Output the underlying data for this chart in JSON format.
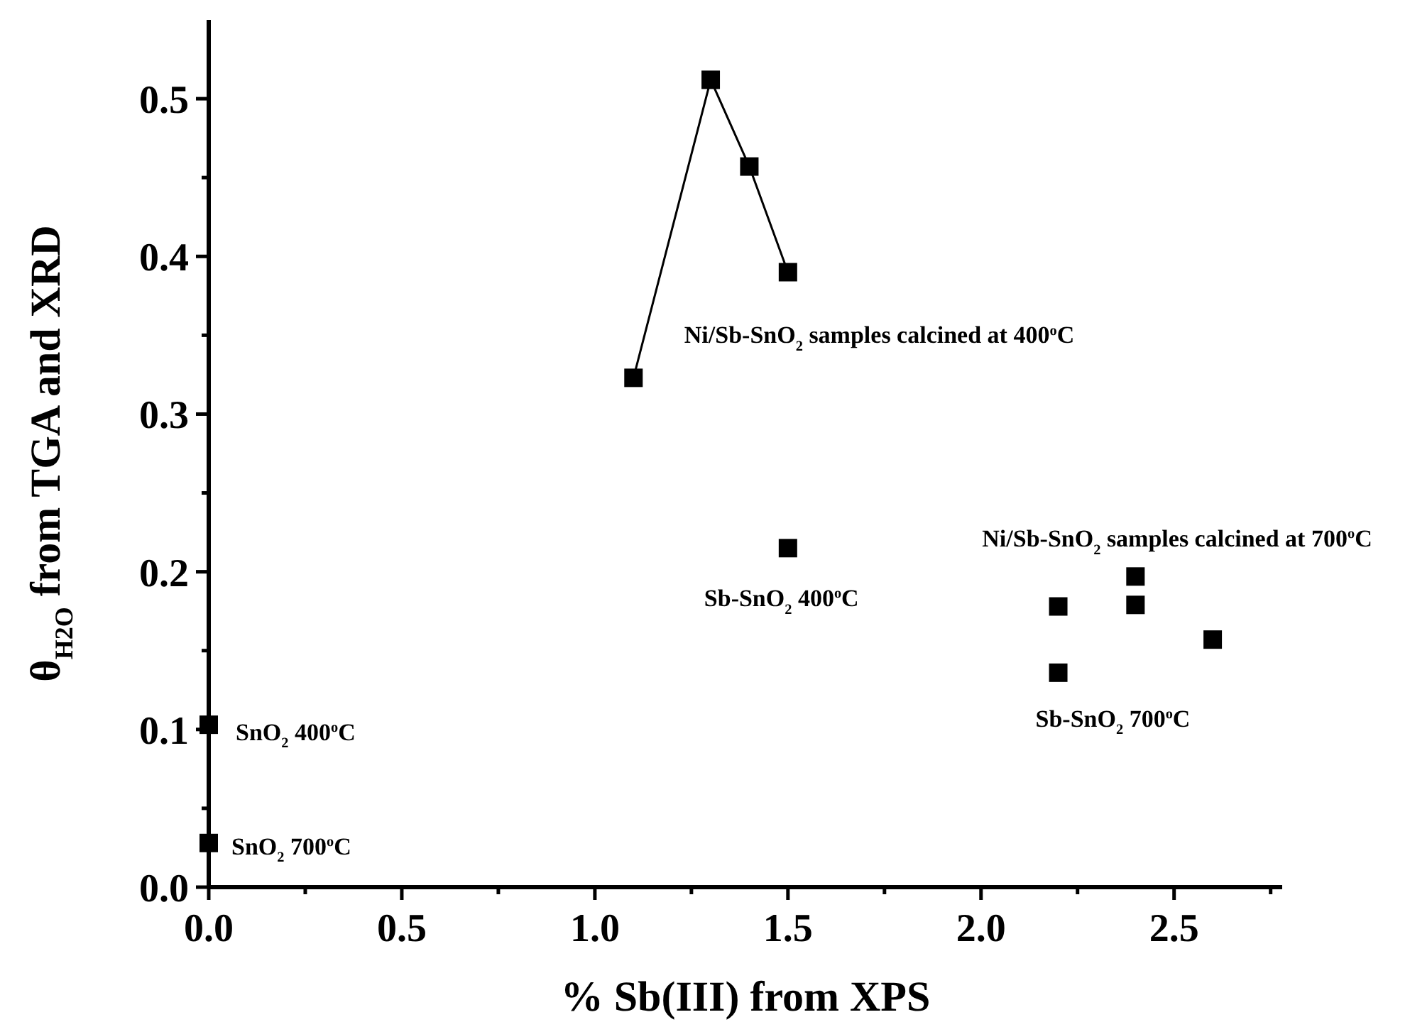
{
  "chart_data": {
    "type": "scatter",
    "xlabel": "% Sb(III) from XPS",
    "ylabel": "θ$_{H2O}$ from TGA and XRD",
    "xlim": [
      0,
      2.78
    ],
    "xticks": [
      {
        "value": 0,
        "label": "0.0"
      },
      {
        "value": 0.25,
        "label": null
      },
      0.5,
      {
        "value": 0.75,
        "label": null
      },
      {
        "value": 1,
        "label": "1.0"
      },
      {
        "value": 1.25,
        "label": null
      },
      1.5,
      {
        "value": 1.75,
        "label": null
      },
      {
        "value": 2,
        "label": "2.0"
      },
      {
        "value": 2.25,
        "label": null
      },
      2.5,
      {
        "value": 2.75,
        "label": null
      }
    ],
    "ylim": [
      0,
      0.55
    ],
    "yticks": [
      {
        "value": 0,
        "label": "0.0"
      },
      {
        "value": 0.05,
        "label": null
      },
      0.1,
      {
        "value": 0.15,
        "label": null
      },
      0.2,
      {
        "value": 0.25,
        "label": null
      },
      0.3,
      {
        "value": 0.35,
        "label": null
      },
      0.4,
      {
        "value": 0.45,
        "label": null
      },
      0.5
    ],
    "marker": "square",
    "series": [
      {
        "type": "line",
        "color": "#000000",
        "x": [
          1.1,
          1.3,
          1.4,
          1.5
        ],
        "values": [
          0.323,
          0.512,
          0.457,
          0.39
        ]
      },
      {
        "color": "#000000",
        "x": [
          1.5,
          2.2,
          2.2,
          2.4,
          2.4,
          2.6,
          0,
          0
        ],
        "values": [
          0.215,
          0.178,
          0.136,
          0.197,
          0.179,
          0.157,
          0.103,
          0.028
        ]
      }
    ],
    "annotations": [
      {
        "text": "Ni/Sb-SnO$_{2}$ samples calcined at 400$^{o}$C",
        "x": 1.5,
        "y": 0.39
      },
      {
        "text": "Sb-SnO$_{2}$ 400$^{o}$C",
        "x": 1.5,
        "y": 0.215
      },
      {
        "text": "Ni/Sb-SnO$_{2}$ samples calcined at 700$^{o}$C",
        "x": 2.4,
        "y": 0.197
      },
      {
        "text": "Sb-SnO$_{2}$ 700$^{o}$C",
        "x": 2.2,
        "y": 0.136
      },
      {
        "text": "SnO$_{2}$ 400$^{o}$C",
        "x": 0,
        "y": 0.103
      },
      {
        "text": "SnO$_{2}$ 700$^{o}$C",
        "x": 0,
        "y": 0.028
      }
    ]
  }
}
